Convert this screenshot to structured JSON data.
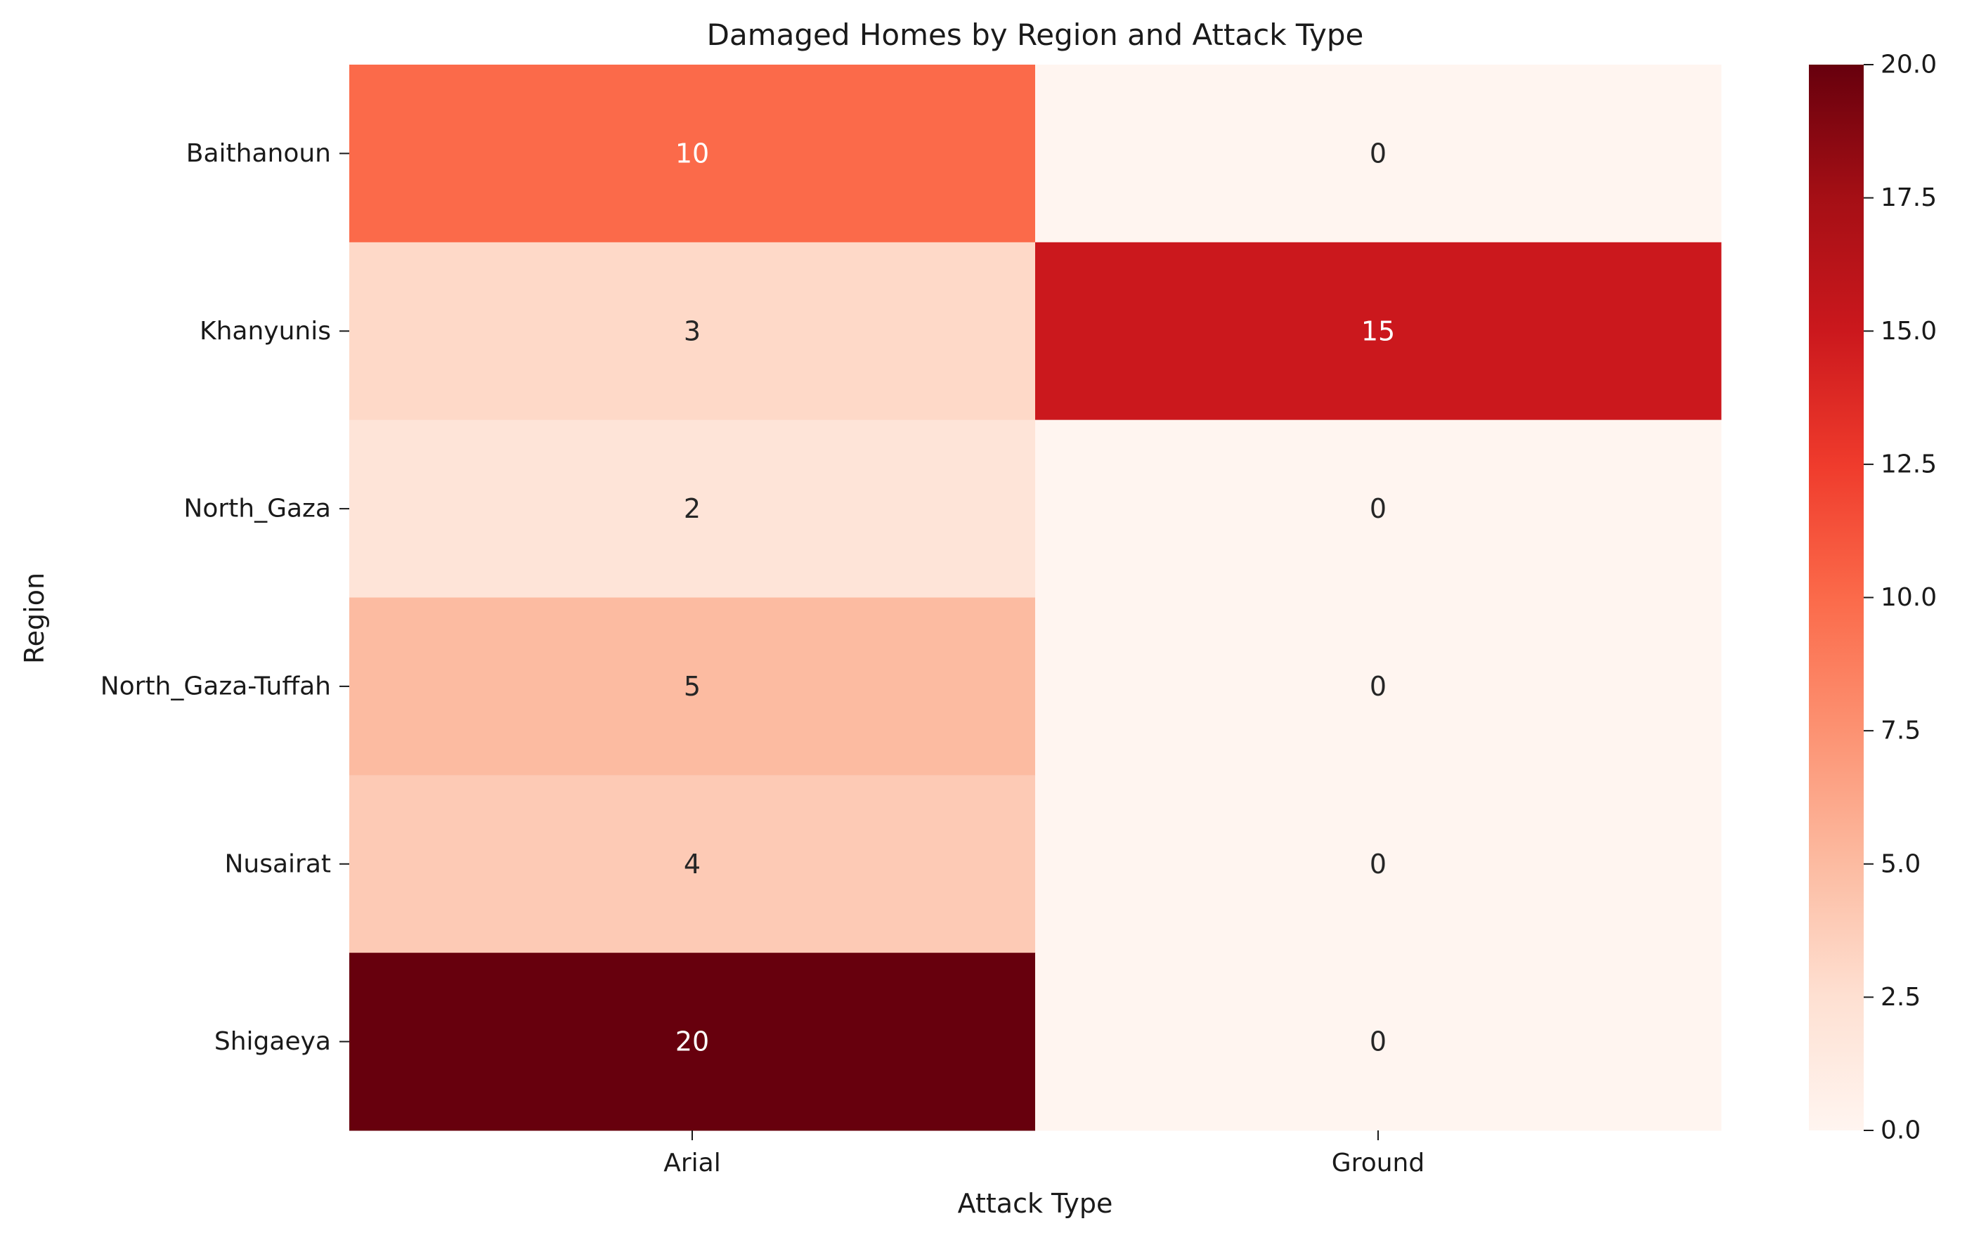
{
  "chart_data": {
    "type": "heatmap",
    "title": "Damaged Homes by Region and Attack Type",
    "xlabel": "Attack Type",
    "ylabel": "Region",
    "x_categories": [
      "Arial",
      "Ground"
    ],
    "y_categories": [
      "Baithanoun",
      "Khanyunis",
      "North_Gaza",
      "North_Gaza-Tuffah",
      "Nusairat",
      "Shigaeya"
    ],
    "values": [
      [
        10,
        0
      ],
      [
        3,
        15
      ],
      [
        2,
        0
      ],
      [
        5,
        0
      ],
      [
        4,
        0
      ],
      [
        20,
        0
      ]
    ],
    "colormap": "Reds",
    "colorbar": {
      "range": [
        0,
        20
      ],
      "ticks": [
        "0.0",
        "2.5",
        "5.0",
        "7.5",
        "10.0",
        "12.5",
        "15.0",
        "17.5",
        "20.0"
      ]
    },
    "annotated": true,
    "grid": false
  }
}
